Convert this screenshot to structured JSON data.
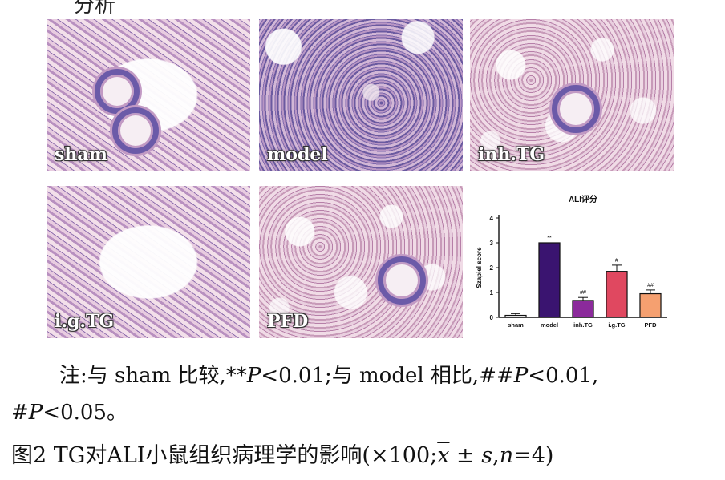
{
  "top_fragment": "分析",
  "panels": [
    {
      "label": "sham"
    },
    {
      "label": "model"
    },
    {
      "label": "inh.TG"
    },
    {
      "label": "i.g.TG"
    },
    {
      "label": "PFD"
    }
  ],
  "chart_data": {
    "type": "bar",
    "title": "ALI评分",
    "ylabel": "Szapiel score",
    "xlabel": "",
    "categories": [
      "sham",
      "model",
      "inh.TG",
      "i.g.TG",
      "PFD"
    ],
    "values": [
      0.08,
      3.0,
      0.68,
      1.85,
      0.95
    ],
    "errors": [
      0.07,
      0.0,
      0.12,
      0.25,
      0.15
    ],
    "annotations": [
      "",
      "**",
      "##",
      "#",
      "##"
    ],
    "colors": [
      "#ffffff",
      "#3a1470",
      "#8b2a9b",
      "#e04860",
      "#f5a070"
    ],
    "ylim": [
      0,
      4
    ],
    "yticks": [
      0,
      1,
      2,
      3,
      4
    ]
  },
  "note": {
    "line1_prefix": "注:与 sham 比较,**",
    "p1": "P",
    "line1_mid": "<0.01;与 model 相比,##",
    "p2": "P",
    "line1_end": "<0.01,",
    "line2_prefix": "#",
    "p3": "P",
    "line2_end": "<0.05。"
  },
  "caption": {
    "prefix": "图2  TG对ALI小鼠组织病理学的影响(×100;",
    "xbar": "x",
    "mid": " ± ",
    "s": "s",
    "comma": ",",
    "n": "n",
    "end": "=4)"
  }
}
